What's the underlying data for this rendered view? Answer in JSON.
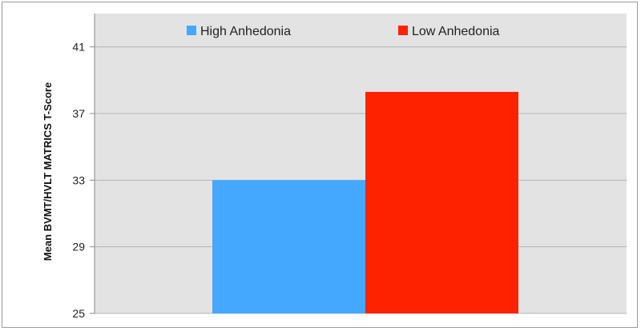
{
  "chart_data": {
    "type": "bar",
    "title": "",
    "xlabel": "",
    "ylabel": "Mean BVMT/HVLT MATRICS T-Score",
    "ylim": [
      25,
      43
    ],
    "yticks": [
      25,
      29,
      33,
      37,
      41
    ],
    "grid": true,
    "legend_position": "top",
    "series": [
      {
        "name": "High Anhedonia",
        "value": 33.0,
        "color": "#44a8ff"
      },
      {
        "name": "Low Anhedonia",
        "value": 38.3,
        "color": "#ff2200"
      }
    ],
    "plot_background": "#e3e3e3",
    "gridline_color": "#b4b4b4"
  }
}
